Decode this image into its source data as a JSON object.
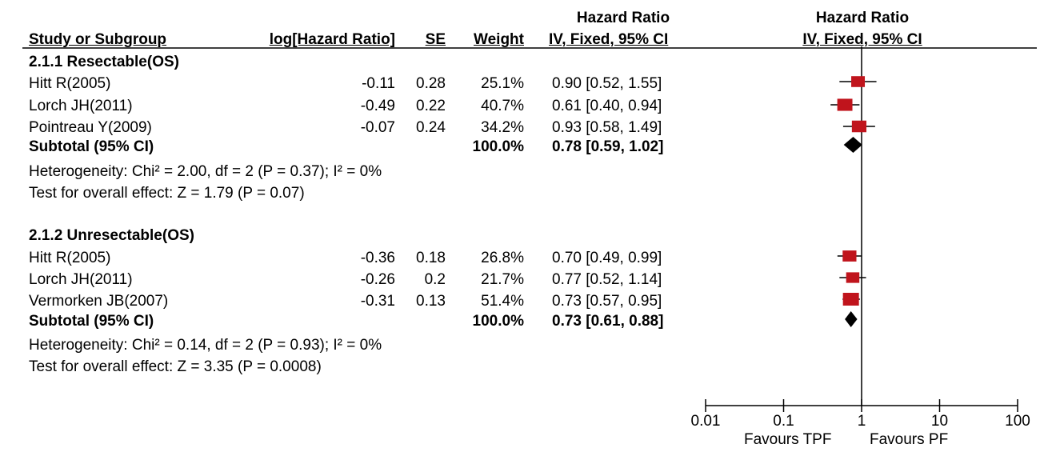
{
  "header": {
    "hr_title_left": "Hazard Ratio",
    "hr_title_right": "Hazard Ratio",
    "col_study": "Study or Subgroup",
    "col_loghr": "log[Hazard Ratio]",
    "col_se": "SE",
    "col_weight": "Weight",
    "col_ci": "IV, Fixed, 95% CI",
    "col_plot": "IV, Fixed, 95% CI"
  },
  "footer": {
    "favours_left": "Favours TPF",
    "favours_right": "Favours PF"
  },
  "chart_data": {
    "type": "forest",
    "x_scale": "log",
    "xlim": [
      0.01,
      100
    ],
    "x_ticks": [
      0.01,
      0.1,
      1,
      10,
      100
    ],
    "x_tick_labels": [
      "0.01",
      "0.1",
      "1",
      "10",
      "100"
    ],
    "reference_line": 1,
    "colors": {
      "study_marker": "#c0141c",
      "summary_diamond": "#000000",
      "line": "#000000"
    },
    "groups": [
      {
        "title": "2.1.1 Resectable(OS)",
        "studies": [
          {
            "name": "Hitt R(2005)",
            "log_hr": "-0.11",
            "se": "0.28",
            "weight": "25.1%",
            "weight_value": 25.1,
            "ci_text": "0.90 [0.52, 1.55]",
            "hr": 0.9,
            "lower": 0.52,
            "upper": 1.55
          },
          {
            "name": "Lorch JH(2011)",
            "log_hr": "-0.49",
            "se": "0.22",
            "weight": "40.7%",
            "weight_value": 40.7,
            "ci_text": "0.61 [0.40, 0.94]",
            "hr": 0.61,
            "lower": 0.4,
            "upper": 0.94
          },
          {
            "name": "Pointreau Y(2009)",
            "log_hr": "-0.07",
            "se": "0.24",
            "weight": "34.2%",
            "weight_value": 34.2,
            "ci_text": "0.93 [0.58, 1.49]",
            "hr": 0.93,
            "lower": 0.58,
            "upper": 1.49
          }
        ],
        "subtotal": {
          "label": "Subtotal (95% CI)",
          "weight": "100.0%",
          "ci_text": "0.78 [0.59, 1.02]",
          "hr": 0.78,
          "lower": 0.59,
          "upper": 1.02
        },
        "heterogeneity": "Heterogeneity: Chi² = 2.00, df = 2 (P = 0.37); I² = 0%",
        "overall_effect": "Test for overall effect: Z = 1.79 (P = 0.07)"
      },
      {
        "title": "2.1.2 Unresectable(OS)",
        "studies": [
          {
            "name": "Hitt R(2005)",
            "log_hr": "-0.36",
            "se": "0.18",
            "weight": "26.8%",
            "weight_value": 26.8,
            "ci_text": "0.70 [0.49, 0.99]",
            "hr": 0.7,
            "lower": 0.49,
            "upper": 0.99
          },
          {
            "name": "Lorch JH(2011)",
            "log_hr": "-0.26",
            "se": "0.2",
            "weight": "21.7%",
            "weight_value": 21.7,
            "ci_text": "0.77 [0.52, 1.14]",
            "hr": 0.77,
            "lower": 0.52,
            "upper": 1.14
          },
          {
            "name": "Vermorken JB(2007)",
            "log_hr": "-0.31",
            "se": "0.13",
            "weight": "51.4%",
            "weight_value": 51.4,
            "ci_text": "0.73 [0.57, 0.95]",
            "hr": 0.73,
            "lower": 0.57,
            "upper": 0.95
          }
        ],
        "subtotal": {
          "label": "Subtotal (95% CI)",
          "weight": "100.0%",
          "ci_text": "0.73 [0.61, 0.88]",
          "hr": 0.73,
          "lower": 0.61,
          "upper": 0.88
        },
        "heterogeneity": "Heterogeneity: Chi² = 0.14, df = 2 (P = 0.93); I² = 0%",
        "overall_effect": "Test for overall effect: Z = 3.35 (P = 0.0008)"
      }
    ]
  }
}
